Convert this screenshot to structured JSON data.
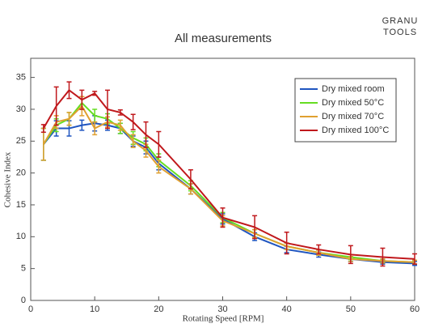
{
  "chart_data": {
    "type": "line",
    "title": "All measurements",
    "logo": [
      "GRANU",
      "TOOLS"
    ],
    "x_label": "Rotating Speed [RPM]",
    "y_label": "Cohesive Index",
    "x": [
      2,
      4,
      6,
      8,
      10,
      12,
      14,
      16,
      18,
      20,
      25,
      30,
      35,
      40,
      45,
      50,
      55,
      60
    ],
    "xlim": [
      0,
      60
    ],
    "xticks": [
      0,
      10,
      20,
      30,
      40,
      50,
      60
    ],
    "ylim": [
      0,
      38
    ],
    "yticks": [
      0,
      5,
      10,
      15,
      20,
      25,
      30,
      35
    ],
    "legend": "upper-right",
    "series": [
      {
        "name": "Dry mixed room",
        "color": "#1f55c0",
        "values": [
          24.5,
          27,
          27,
          27.5,
          27.8,
          27.5,
          27,
          25,
          24,
          21.5,
          17.5,
          12.8,
          10,
          8,
          7.2,
          6.5,
          6,
          5.8
        ],
        "errors": [
          2.5,
          1.2,
          1.2,
          0.8,
          1.2,
          0.8,
          0.8,
          0.8,
          1,
          1,
          0.8,
          0.8,
          0.6,
          0.5,
          0.4,
          0.4,
          0.3,
          0.3
        ]
      },
      {
        "name": "Dry mixed 50°C",
        "color": "#66dd22",
        "values": [
          24.5,
          27.5,
          28.5,
          31,
          29,
          28.5,
          27,
          25.5,
          24.5,
          22,
          18,
          13,
          10.5,
          8.5,
          7.5,
          6.8,
          6.2,
          6
        ],
        "errors": [
          2.5,
          1,
          1,
          1,
          1,
          0.8,
          0.8,
          1,
          1,
          1,
          0.8,
          0.8,
          0.6,
          0.5,
          0.4,
          0.4,
          0.3,
          0.3
        ]
      },
      {
        "name": "Dry mixed 70°C",
        "color": "#e0a030",
        "values": [
          24.5,
          28,
          28.5,
          30.5,
          27,
          28,
          27.5,
          25,
          23.5,
          21,
          17.5,
          12.5,
          10.5,
          8.5,
          7.5,
          6.5,
          6.2,
          6
        ],
        "errors": [
          2.5,
          1,
          1,
          1.5,
          1,
          0.8,
          0.8,
          1,
          1,
          1,
          0.8,
          0.8,
          0.6,
          0.5,
          0.4,
          0.4,
          0.3,
          0.3
        ]
      },
      {
        "name": "Dry mixed 100°C",
        "color": "#c0181c",
        "values": [
          27,
          30.5,
          33,
          31.5,
          32.5,
          30,
          29.5,
          28,
          26,
          24.5,
          19,
          13,
          11.5,
          9,
          8,
          7.2,
          6.8,
          6.5
        ],
        "errors": [
          0.6,
          3,
          1.3,
          1.5,
          0.3,
          3,
          0.4,
          1.2,
          2,
          2,
          1.5,
          1.5,
          1.8,
          1.7,
          0.7,
          1.4,
          1.4,
          0.8
        ]
      }
    ]
  }
}
